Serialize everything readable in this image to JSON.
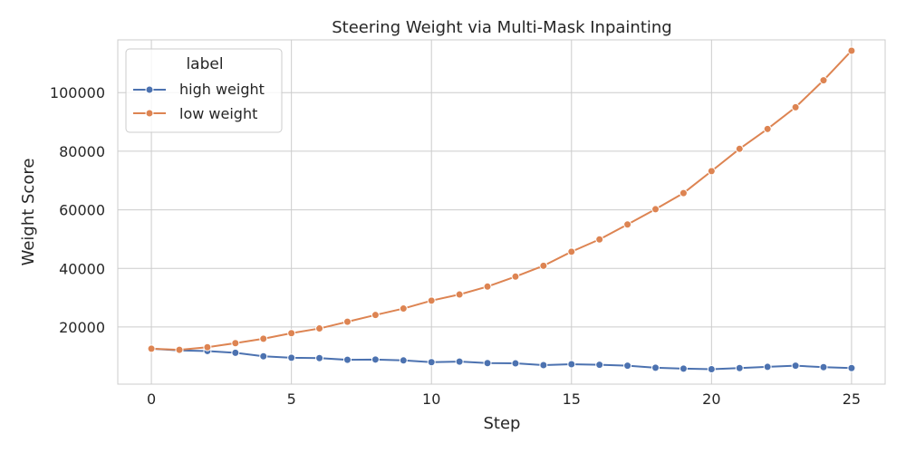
{
  "chart_data": {
    "type": "line",
    "title": "Steering Weight via Multi-Mask Inpainting",
    "xlabel": "Step",
    "ylabel": "Weight Score",
    "xlim": [
      -1.2,
      26.2
    ],
    "ylim": [
      500,
      118000
    ],
    "xticks": [
      0,
      5,
      10,
      15,
      20,
      25
    ],
    "yticks": [
      20000,
      40000,
      60000,
      80000,
      100000
    ],
    "grid": true,
    "legend": {
      "title": "label",
      "placement": "top-left"
    },
    "x": [
      0,
      1,
      2,
      3,
      4,
      5,
      6,
      7,
      8,
      9,
      10,
      11,
      12,
      13,
      14,
      15,
      16,
      17,
      18,
      19,
      20,
      21,
      22,
      23,
      24,
      25
    ],
    "series": [
      {
        "name": "high weight",
        "color": "#4c72b0",
        "values": [
          12600,
          12000,
          11800,
          11200,
          10000,
          9500,
          9400,
          8800,
          8900,
          8600,
          8000,
          8200,
          7700,
          7600,
          7000,
          7300,
          7100,
          6800,
          6100,
          5800,
          5600,
          6000,
          6400,
          6800,
          6300,
          6000
        ]
      },
      {
        "name": "low weight",
        "color": "#dd8452",
        "values": [
          12600,
          12200,
          13100,
          14500,
          16000,
          17900,
          19500,
          21800,
          24100,
          26300,
          29000,
          31100,
          33800,
          37200,
          40900,
          45700,
          49900,
          55000,
          60200,
          65700,
          73200,
          80800,
          87600,
          95000,
          104200,
          114300
        ]
      }
    ]
  }
}
